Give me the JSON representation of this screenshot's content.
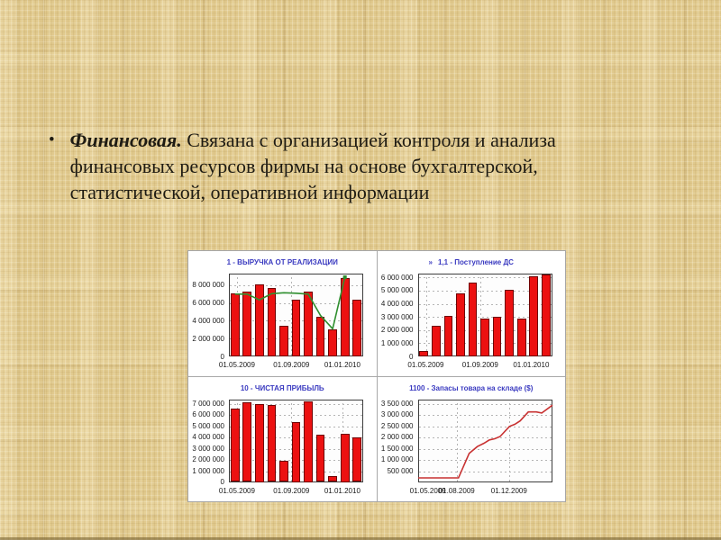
{
  "slide": {
    "background_base_color": "#e1ca8e",
    "bottom_edge_color": "#6e5826"
  },
  "bullet": {
    "marker": "•",
    "lead": "Финансовая.",
    "body": " Связана с организацией контроля и анализа финансовых ресурсов фирмы на основе бухгалтерской, статистической, оперативной информации"
  },
  "chart_panel": {
    "background": "#ffffff",
    "border_color": "#a6a6a6",
    "title_color": "#3a3ac0",
    "axis_text_color": "#1a1a1a",
    "bar_color": "#ec1111",
    "bar_border_color": "#6e0000",
    "trend_line_color": "#2f8f2f",
    "stock_line_color": "#c83232"
  },
  "chart_data": [
    {
      "id": "revenue-from-sales",
      "type": "bar",
      "title": "1 - ВЫРУЧКА ОТ РЕАЛИЗАЦИИ",
      "title_prefix": "",
      "ymax": 9300000,
      "grid": true,
      "ytick_values": [
        0,
        2000000,
        4000000,
        6000000,
        8000000
      ],
      "ytick_labels": [
        "0",
        "2 000 000",
        "4 000 000",
        "6 000 000",
        "8 000 000"
      ],
      "xticks": [
        {
          "pos": 0.06,
          "label": "01.05.2009",
          "vgrid": true
        },
        {
          "pos": 0.465,
          "label": "01.09.2009",
          "vgrid": true
        },
        {
          "pos": 0.845,
          "label": "01.01.2010",
          "vgrid": true
        }
      ],
      "values": [
        7100000,
        7250000,
        8050000,
        7700000,
        3400000,
        6400000,
        7300000,
        4500000,
        3000000,
        8800000,
        6400000
      ],
      "trend": {
        "color": "#2f8f2f",
        "values": [
          7000000,
          7000000,
          6350000,
          7050000,
          7150000,
          7100000,
          7000000,
          4600000,
          3100000,
          8900000
        ],
        "end_marker": true
      }
    },
    {
      "id": "cash-receipts",
      "type": "bar",
      "title": "1,1 - Поступление ДС",
      "title_prefix": "»",
      "ymax": 6300000,
      "grid": true,
      "ytick_values": [
        0,
        1000000,
        2000000,
        3000000,
        4000000,
        5000000,
        6000000
      ],
      "ytick_labels": [
        "0",
        "1 000 000",
        "2 000 000",
        "3 000 000",
        "4 000 000",
        "5 000 000",
        "6 000 000"
      ],
      "xticks": [
        {
          "pos": 0.06,
          "label": "01.05.2009",
          "vgrid": true
        },
        {
          "pos": 0.465,
          "label": "01.09.2009",
          "vgrid": true
        },
        {
          "pos": 0.845,
          "label": "01.01.2010",
          "vgrid": true
        }
      ],
      "values": [
        400000,
        2300000,
        3100000,
        4800000,
        5600000,
        2850000,
        3050000,
        5050000,
        2900000,
        6100000,
        6250000
      ]
    },
    {
      "id": "net-profit",
      "type": "bar",
      "title": "10 - ЧИСТАЯ ПРИБЫЛЬ",
      "title_prefix": "",
      "ymax": 7400000,
      "grid": true,
      "ytick_values": [
        0,
        1000000,
        2000000,
        3000000,
        4000000,
        5000000,
        6000000,
        7000000
      ],
      "ytick_labels": [
        "0",
        "1 000 000",
        "2 000 000",
        "3 000 000",
        "4 000 000",
        "5 000 000",
        "6 000 000",
        "7 000 000"
      ],
      "xticks": [
        {
          "pos": 0.06,
          "label": "01.05.2009",
          "vgrid": true
        },
        {
          "pos": 0.465,
          "label": "01.09.2009",
          "vgrid": true
        },
        {
          "pos": 0.845,
          "label": "01.01.2010",
          "vgrid": true
        }
      ],
      "values": [
        6550000,
        7100000,
        7000000,
        6900000,
        1900000,
        5350000,
        7200000,
        4200000,
        500000,
        4300000,
        4000000
      ]
    },
    {
      "id": "warehouse-stock",
      "type": "line",
      "title": "1100 - Запасы товара на складе ($)",
      "title_prefix": "",
      "ymax": 3700000,
      "grid": true,
      "ytick_values": [
        500000,
        1000000,
        1500000,
        2000000,
        2500000,
        3000000,
        3500000
      ],
      "ytick_labels": [
        "500 000",
        "1 000 000",
        "1 500 000",
        "2 000 000",
        "2 500 000",
        "3 000 000",
        "3 500 000"
      ],
      "xticks": [
        {
          "pos": 0.075,
          "label": "01.05.2009",
          "vgrid": false
        },
        {
          "pos": 0.29,
          "label": "01.08.2009",
          "vgrid": true
        },
        {
          "pos": 0.68,
          "label": "01.12.2009",
          "vgrid": true
        }
      ],
      "line": {
        "color": "#c83232",
        "points": [
          [
            0,
            200000
          ],
          [
            0.3,
            200000
          ],
          [
            0.38,
            1300000
          ],
          [
            0.44,
            1600000
          ],
          [
            0.49,
            1750000
          ],
          [
            0.53,
            1900000
          ],
          [
            0.57,
            1950000
          ],
          [
            0.61,
            2050000
          ],
          [
            0.68,
            2500000
          ],
          [
            0.72,
            2600000
          ],
          [
            0.76,
            2750000
          ],
          [
            0.82,
            3150000
          ],
          [
            0.88,
            3150000
          ],
          [
            0.92,
            3100000
          ],
          [
            1,
            3450000
          ]
        ]
      }
    }
  ]
}
